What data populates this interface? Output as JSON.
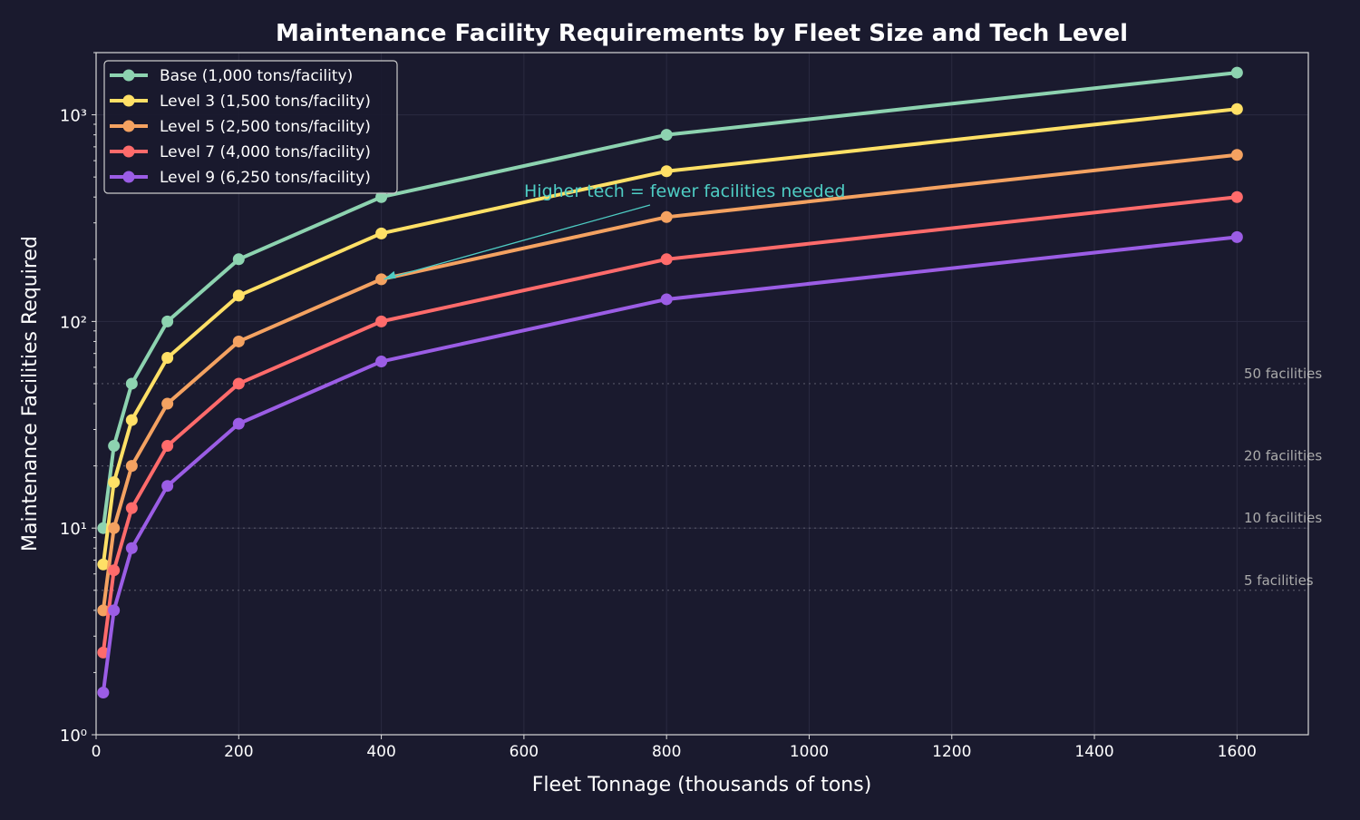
{
  "chart_data": {
    "type": "line",
    "title": "Maintenance Facility Requirements by Fleet Size and Tech Level",
    "xlabel": "Fleet Tonnage (thousands of tons)",
    "ylabel": "Maintenance Facilities Required",
    "xlim": [
      0,
      1700
    ],
    "ylim": [
      1,
      2000
    ],
    "yscale": "log",
    "grid": true,
    "legend_position": "top-left",
    "x_ticks": [
      0,
      200,
      400,
      600,
      800,
      1000,
      1200,
      1400,
      1600
    ],
    "y_ticks": [
      {
        "value": 1,
        "label": "10⁰"
      },
      {
        "value": 10,
        "label": "10¹"
      },
      {
        "value": 100,
        "label": "10²"
      },
      {
        "value": 1000,
        "label": "10³"
      }
    ],
    "x": [
      10,
      25,
      50,
      100,
      200,
      400,
      800,
      1600
    ],
    "series": [
      {
        "name": "Base (1,000 tons/facility)",
        "color": "#8dd3b0",
        "values": [
          10,
          25,
          50,
          100,
          200,
          400,
          800,
          1600
        ]
      },
      {
        "name": "Level 3 (1,500 tons/facility)",
        "color": "#ffe066",
        "values": [
          6.67,
          16.67,
          33.33,
          66.67,
          133.33,
          266.67,
          533.33,
          1066.67
        ]
      },
      {
        "name": "Level 5 (2,500 tons/facility)",
        "color": "#f4a261",
        "values": [
          4,
          10,
          20,
          40,
          80,
          160,
          320,
          640
        ]
      },
      {
        "name": "Level 7 (4,000 tons/facility)",
        "color": "#ff6b6b",
        "values": [
          2.5,
          6.25,
          12.5,
          25,
          50,
          100,
          200,
          400
        ]
      },
      {
        "name": "Level 9 (6,250 tons/facility)",
        "color": "#9b5de5",
        "values": [
          1.6,
          4,
          8,
          16,
          32,
          64,
          128,
          256
        ]
      }
    ],
    "reference_lines": [
      {
        "value": 50,
        "label": "50 facilities"
      },
      {
        "value": 20,
        "label": "20 facilities"
      },
      {
        "value": 10,
        "label": "10 facilities"
      },
      {
        "value": 5,
        "label": "5 facilities"
      }
    ],
    "annotation": {
      "text": "Higher tech = fewer facilities needed",
      "point": [
        400,
        160
      ],
      "color": "#4ecdc4"
    }
  }
}
